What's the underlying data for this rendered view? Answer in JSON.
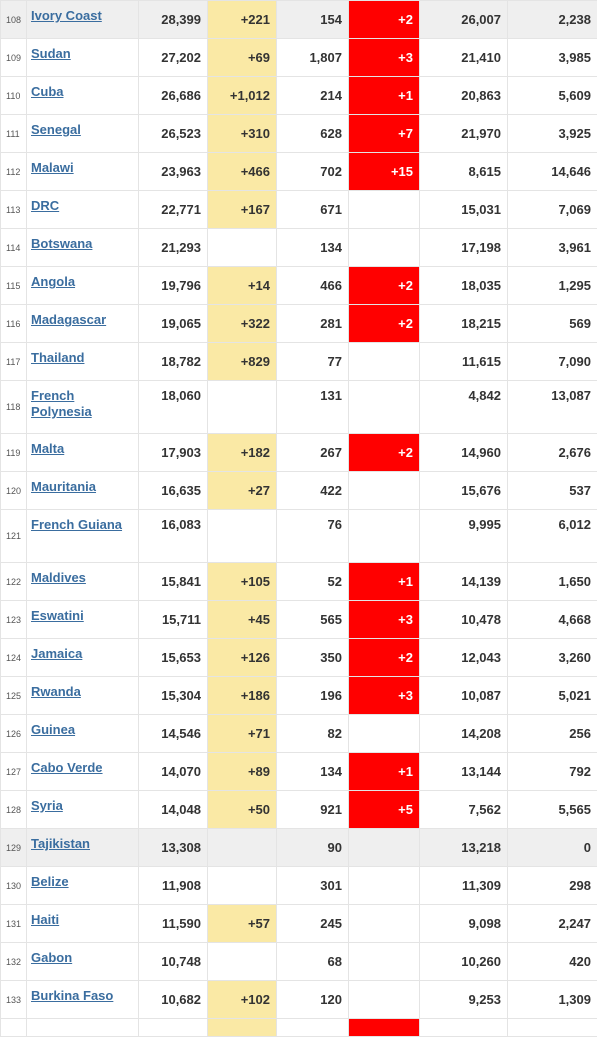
{
  "colors": {
    "link": "#3a6d9f",
    "new_cases_bg": "#fae9a5",
    "new_deaths_bg": "#ff0000",
    "highlight_row_bg": "#efefef"
  },
  "rows": [
    {
      "rank": "108",
      "country": "Ivory Coast",
      "total_cases": "28,399",
      "new_cases": "+221",
      "total_deaths": "154",
      "new_deaths": "+2",
      "recovered": "26,007",
      "active": "2,238",
      "highlight": true
    },
    {
      "rank": "109",
      "country": "Sudan",
      "total_cases": "27,202",
      "new_cases": "+69",
      "total_deaths": "1,807",
      "new_deaths": "+3",
      "recovered": "21,410",
      "active": "3,985"
    },
    {
      "rank": "110",
      "country": "Cuba",
      "total_cases": "26,686",
      "new_cases": "+1,012",
      "total_deaths": "214",
      "new_deaths": "+1",
      "recovered": "20,863",
      "active": "5,609"
    },
    {
      "rank": "111",
      "country": "Senegal",
      "total_cases": "26,523",
      "new_cases": "+310",
      "total_deaths": "628",
      "new_deaths": "+7",
      "recovered": "21,970",
      "active": "3,925"
    },
    {
      "rank": "112",
      "country": "Malawi",
      "total_cases": "23,963",
      "new_cases": "+466",
      "total_deaths": "702",
      "new_deaths": "+15",
      "recovered": "8,615",
      "active": "14,646"
    },
    {
      "rank": "113",
      "country": "DRC",
      "total_cases": "22,771",
      "new_cases": "+167",
      "total_deaths": "671",
      "new_deaths": "",
      "recovered": "15,031",
      "active": "7,069"
    },
    {
      "rank": "114",
      "country": "Botswana",
      "total_cases": "21,293",
      "new_cases": "",
      "total_deaths": "134",
      "new_deaths": "",
      "recovered": "17,198",
      "active": "3,961"
    },
    {
      "rank": "115",
      "country": "Angola",
      "total_cases": "19,796",
      "new_cases": "+14",
      "total_deaths": "466",
      "new_deaths": "+2",
      "recovered": "18,035",
      "active": "1,295"
    },
    {
      "rank": "116",
      "country": "Madagascar",
      "total_cases": "19,065",
      "new_cases": "+322",
      "total_deaths": "281",
      "new_deaths": "+2",
      "recovered": "18,215",
      "active": "569"
    },
    {
      "rank": "117",
      "country": "Thailand",
      "total_cases": "18,782",
      "new_cases": "+829",
      "total_deaths": "77",
      "new_deaths": "",
      "recovered": "11,615",
      "active": "7,090"
    },
    {
      "rank": "118",
      "country": "French Polynesia",
      "total_cases": "18,060",
      "new_cases": "",
      "total_deaths": "131",
      "new_deaths": "",
      "recovered": "4,842",
      "active": "13,087",
      "tall": true
    },
    {
      "rank": "119",
      "country": "Malta",
      "total_cases": "17,903",
      "new_cases": "+182",
      "total_deaths": "267",
      "new_deaths": "+2",
      "recovered": "14,960",
      "active": "2,676"
    },
    {
      "rank": "120",
      "country": "Mauritania",
      "total_cases": "16,635",
      "new_cases": "+27",
      "total_deaths": "422",
      "new_deaths": "",
      "recovered": "15,676",
      "active": "537"
    },
    {
      "rank": "121",
      "country": "French Guiana",
      "total_cases": "16,083",
      "new_cases": "",
      "total_deaths": "76",
      "new_deaths": "",
      "recovered": "9,995",
      "active": "6,012",
      "tall": true
    },
    {
      "rank": "122",
      "country": "Maldives",
      "total_cases": "15,841",
      "new_cases": "+105",
      "total_deaths": "52",
      "new_deaths": "+1",
      "recovered": "14,139",
      "active": "1,650"
    },
    {
      "rank": "123",
      "country": "Eswatini",
      "total_cases": "15,711",
      "new_cases": "+45",
      "total_deaths": "565",
      "new_deaths": "+3",
      "recovered": "10,478",
      "active": "4,668"
    },
    {
      "rank": "124",
      "country": "Jamaica",
      "total_cases": "15,653",
      "new_cases": "+126",
      "total_deaths": "350",
      "new_deaths": "+2",
      "recovered": "12,043",
      "active": "3,260"
    },
    {
      "rank": "125",
      "country": "Rwanda",
      "total_cases": "15,304",
      "new_cases": "+186",
      "total_deaths": "196",
      "new_deaths": "+3",
      "recovered": "10,087",
      "active": "5,021"
    },
    {
      "rank": "126",
      "country": "Guinea",
      "total_cases": "14,546",
      "new_cases": "+71",
      "total_deaths": "82",
      "new_deaths": "",
      "recovered": "14,208",
      "active": "256"
    },
    {
      "rank": "127",
      "country": "Cabo Verde",
      "total_cases": "14,070",
      "new_cases": "+89",
      "total_deaths": "134",
      "new_deaths": "+1",
      "recovered": "13,144",
      "active": "792"
    },
    {
      "rank": "128",
      "country": "Syria",
      "total_cases": "14,048",
      "new_cases": "+50",
      "total_deaths": "921",
      "new_deaths": "+5",
      "recovered": "7,562",
      "active": "5,565"
    },
    {
      "rank": "129",
      "country": "Tajikistan",
      "total_cases": "13,308",
      "new_cases": "",
      "total_deaths": "90",
      "new_deaths": "",
      "recovered": "13,218",
      "active": "0",
      "highlight": true
    },
    {
      "rank": "130",
      "country": "Belize",
      "total_cases": "11,908",
      "new_cases": "",
      "total_deaths": "301",
      "new_deaths": "",
      "recovered": "11,309",
      "active": "298"
    },
    {
      "rank": "131",
      "country": "Haiti",
      "total_cases": "11,590",
      "new_cases": "+57",
      "total_deaths": "245",
      "new_deaths": "",
      "recovered": "9,098",
      "active": "2,247"
    },
    {
      "rank": "132",
      "country": "Gabon",
      "total_cases": "10,748",
      "new_cases": "",
      "total_deaths": "68",
      "new_deaths": "",
      "recovered": "10,260",
      "active": "420"
    },
    {
      "rank": "133",
      "country": "Burkina Faso",
      "total_cases": "10,682",
      "new_cases": "+102",
      "total_deaths": "120",
      "new_deaths": "",
      "recovered": "9,253",
      "active": "1,309"
    }
  ],
  "partial_row": {
    "new_cases": "has",
    "new_deaths": "has"
  }
}
